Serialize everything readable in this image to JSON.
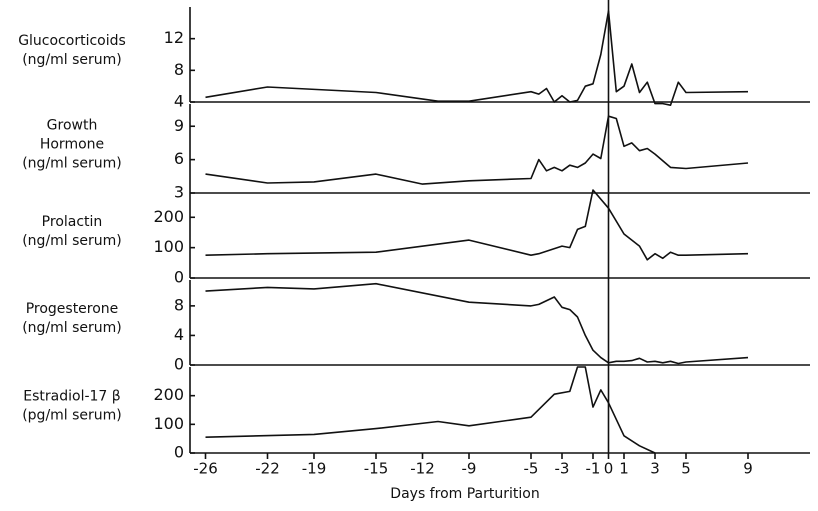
{
  "chart_data": [
    {
      "type": "line",
      "ylabel": [
        "Glucocorticoids",
        "(ng/ml serum)"
      ],
      "color": "#111111",
      "x": [
        -26,
        -22,
        -15,
        -11,
        -9,
        -5,
        -4.5,
        -4,
        -3.5,
        -3,
        -2.5,
        -2,
        -1.5,
        -1,
        -0.5,
        0,
        0.5,
        1,
        1.5,
        2,
        2.5,
        3,
        3.5,
        4,
        4.5,
        5,
        9
      ],
      "values": [
        4.6,
        5.9,
        5.2,
        4.1,
        4.1,
        5.3,
        5.0,
        5.7,
        4.0,
        4.8,
        4.0,
        4.2,
        6.0,
        6.3,
        10,
        15.5,
        5.3,
        6.0,
        8.8,
        5.2,
        6.5,
        3.8,
        3.8,
        3.6,
        6.5,
        5.2,
        5.3
      ],
      "xlim": [
        -27,
        13
      ],
      "ylim": [
        4,
        16
      ],
      "yticks": [
        4,
        8,
        12
      ]
    },
    {
      "type": "line",
      "ylabel": [
        "Growth",
        "Hormone",
        "(ng/ml serum)"
      ],
      "color": "#111111",
      "x": [
        -26,
        -22,
        -19,
        -15,
        -12,
        -9,
        -5,
        -4.5,
        -4,
        -3.5,
        -3,
        -2.5,
        -2,
        -1.5,
        -1,
        -0.5,
        0,
        0.5,
        1,
        1.5,
        2,
        2.5,
        3,
        4,
        5,
        9
      ],
      "values": [
        4.7,
        3.9,
        4.0,
        4.7,
        3.8,
        4.1,
        4.3,
        6.0,
        5.0,
        5.3,
        5.0,
        5.5,
        5.3,
        5.7,
        6.5,
        6.1,
        9.9,
        9.7,
        7.2,
        7.5,
        6.8,
        7.0,
        6.5,
        5.3,
        5.2,
        5.7
      ],
      "xlim": [
        -27,
        13
      ],
      "ylim": [
        3,
        11
      ],
      "yticks": [
        3,
        6,
        9
      ]
    },
    {
      "type": "line",
      "ylabel": [
        "Prolactin",
        "(ng/ml serum)"
      ],
      "color": "#111111",
      "x": [
        -26,
        -22,
        -15,
        -9,
        -5,
        -4.5,
        -3,
        -2.5,
        -2,
        -1.5,
        -1,
        0,
        1,
        2,
        2.5,
        3,
        3.5,
        4,
        4.5,
        5,
        9
      ],
      "values": [
        75,
        80,
        85,
        125,
        75,
        80,
        105,
        100,
        160,
        170,
        290,
        230,
        145,
        105,
        60,
        80,
        65,
        85,
        75,
        75,
        80
      ],
      "xlim": [
        -27,
        13
      ],
      "ylim": [
        0,
        280
      ],
      "yticks": [
        0,
        100,
        200
      ]
    },
    {
      "type": "line",
      "ylabel": [
        "Progesterone",
        "(ng/ml serum)"
      ],
      "color": "#111111",
      "x": [
        -26,
        -22,
        -19,
        -15,
        -9,
        -5,
        -4.5,
        -3.5,
        -3,
        -2.5,
        -2,
        -1.5,
        -1,
        -0.5,
        0,
        0.5,
        1,
        1.5,
        2,
        2.5,
        3,
        3.5,
        4,
        4.5,
        5,
        9
      ],
      "values": [
        10,
        10.5,
        10.3,
        11,
        8.5,
        8,
        8.2,
        9.2,
        7.8,
        7.5,
        6.5,
        4,
        2,
        1,
        0.3,
        0.5,
        0.5,
        0.6,
        0.9,
        0.4,
        0.5,
        0.3,
        0.5,
        0.2,
        0.4,
        1
      ],
      "xlim": [
        -27,
        13
      ],
      "ylim": [
        0,
        11.5
      ],
      "yticks": [
        0,
        4,
        8
      ]
    },
    {
      "type": "line",
      "ylabel": [
        "Estradiol-17 β",
        "(pg/ml serum)"
      ],
      "color": "#111111",
      "x": [
        -26,
        -19,
        -15,
        -11,
        -9,
        -5,
        -3.5,
        -2.5,
        -2,
        -1.5,
        -1,
        -0.5,
        0,
        1,
        2,
        3
      ],
      "values": [
        55,
        65,
        85,
        110,
        95,
        125,
        205,
        215,
        300,
        300,
        160,
        220,
        175,
        60,
        25,
        0
      ],
      "xlim": [
        -27,
        13
      ],
      "ylim": [
        0,
        300
      ],
      "yticks": [
        0,
        100,
        200
      ],
      "xticks": [
        -26,
        -22,
        -19,
        -15,
        -12,
        -9,
        -5,
        -3,
        -1,
        0,
        1,
        3,
        5,
        9
      ],
      "xlabel": "Days from Parturition"
    }
  ]
}
